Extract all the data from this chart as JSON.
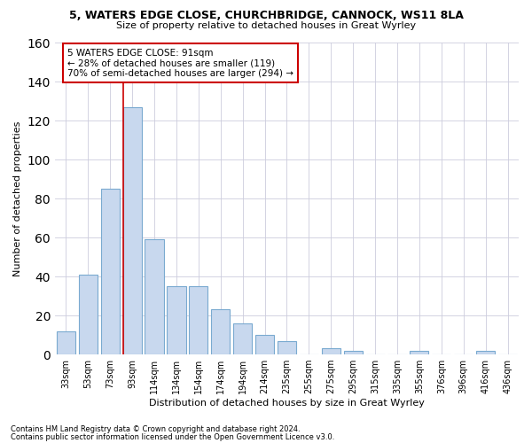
{
  "title_line1": "5, WATERS EDGE CLOSE, CHURCHBRIDGE, CANNOCK, WS11 8LA",
  "title_line2": "Size of property relative to detached houses in Great Wyrley",
  "xlabel": "Distribution of detached houses by size in Great Wyrley",
  "ylabel": "Number of detached properties",
  "categories": [
    "33sqm",
    "53sqm",
    "73sqm",
    "93sqm",
    "114sqm",
    "134sqm",
    "154sqm",
    "174sqm",
    "194sqm",
    "214sqm",
    "235sqm",
    "255sqm",
    "275sqm",
    "295sqm",
    "315sqm",
    "335sqm",
    "355sqm",
    "376sqm",
    "396sqm",
    "416sqm",
    "436sqm"
  ],
  "bar_heights": [
    12,
    41,
    85,
    127,
    59,
    35,
    35,
    23,
    16,
    10,
    7,
    0,
    3,
    2,
    0,
    0,
    2,
    0,
    0,
    2,
    0
  ],
  "bar_color": "#c8d8ee",
  "bar_edgecolor": "#7aaad0",
  "grid_color": "#ccccdd",
  "vline_index": 3,
  "vline_color": "#cc0000",
  "annotation_line1": "5 WATERS EDGE CLOSE: 91sqm",
  "annotation_line2": "← 28% of detached houses are smaller (119)",
  "annotation_line3": "70% of semi-detached houses are larger (294) →",
  "annotation_box_edgecolor": "#cc0000",
  "annotation_box_facecolor": "#ffffff",
  "ylim_max": 160,
  "bg_color": "#ffffff",
  "footnote1": "Contains HM Land Registry data © Crown copyright and database right 2024.",
  "footnote2": "Contains public sector information licensed under the Open Government Licence v3.0."
}
